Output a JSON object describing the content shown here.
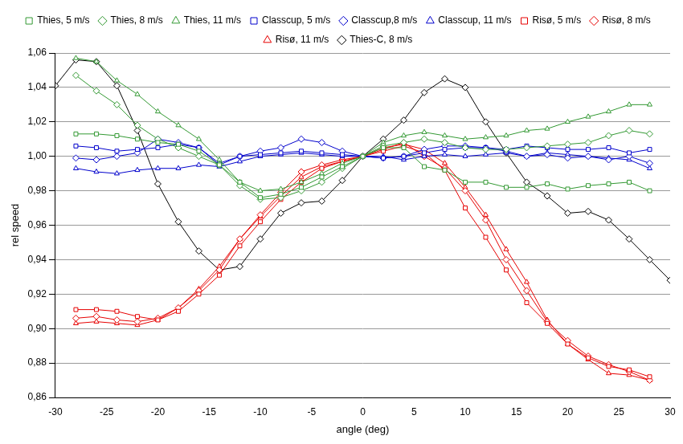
{
  "chart_data": {
    "type": "line",
    "x_label": "angle (deg)",
    "y_label": "rel speed",
    "xlim": [
      -30,
      30
    ],
    "xticks": [
      -30,
      -25,
      -20,
      -15,
      -10,
      -5,
      0,
      5,
      10,
      15,
      20,
      25,
      30
    ],
    "ylim": [
      0.86,
      1.06
    ],
    "yticks": [
      {
        "value": 0.86,
        "label": "0,86"
      },
      {
        "value": 0.88,
        "label": "0,88"
      },
      {
        "value": 0.9,
        "label": "0,90"
      },
      {
        "value": 0.92,
        "label": "0,92"
      },
      {
        "value": 0.94,
        "label": "0,94"
      },
      {
        "value": 0.96,
        "label": "0,96"
      },
      {
        "value": 0.98,
        "label": "0,98"
      },
      {
        "value": 1.0,
        "label": "1,00"
      },
      {
        "value": 1.02,
        "label": "1,02"
      },
      {
        "value": 1.04,
        "label": "1,04"
      },
      {
        "value": 1.06,
        "label": "1,06"
      }
    ],
    "grid": "y",
    "legend": "top",
    "series": [
      {
        "name": "Thies, 5 m/s",
        "color": "#339933",
        "marker": "square",
        "x": [
          -28,
          -26,
          -24,
          -22,
          -20,
          -18,
          -16,
          -14,
          -12,
          -10,
          -8,
          -6,
          -4,
          -2,
          0,
          2,
          4,
          6,
          8,
          10,
          12,
          14,
          16,
          18,
          20,
          22,
          24,
          26,
          28
        ],
        "values": [
          1.013,
          1.013,
          1.012,
          1.01,
          1.008,
          1.007,
          1.003,
          0.995,
          0.985,
          0.976,
          0.978,
          0.982,
          0.988,
          0.994,
          1.0,
          1.005,
          1.005,
          0.994,
          0.992,
          0.985,
          0.985,
          0.982,
          0.982,
          0.984,
          0.981,
          0.983,
          0.984,
          0.985,
          0.98
        ]
      },
      {
        "name": "Thies, 8 m/s",
        "color": "#339933",
        "marker": "diamond",
        "x": [
          -28,
          -26,
          -24,
          -22,
          -20,
          -18,
          -16,
          -14,
          -12,
          -10,
          -8,
          -6,
          -4,
          -2,
          0,
          2,
          4,
          6,
          8,
          10,
          12,
          14,
          16,
          18,
          20,
          22,
          24,
          26,
          28
        ],
        "values": [
          1.047,
          1.038,
          1.03,
          1.018,
          1.01,
          1.005,
          1.0,
          0.995,
          0.983,
          0.975,
          0.976,
          0.98,
          0.985,
          0.993,
          1.0,
          1.006,
          1.008,
          1.01,
          1.008,
          1.005,
          1.004,
          1.004,
          1.005,
          1.006,
          1.007,
          1.008,
          1.012,
          1.015,
          1.013
        ]
      },
      {
        "name": "Thies, 11 m/s",
        "color": "#339933",
        "marker": "triangle",
        "x": [
          -28,
          -26,
          -24,
          -22,
          -20,
          -18,
          -16,
          -14,
          -12,
          -10,
          -8,
          -6,
          -4,
          -2,
          0,
          2,
          4,
          6,
          8,
          10,
          12,
          14,
          16,
          18,
          20,
          22,
          24,
          26,
          28
        ],
        "values": [
          1.057,
          1.055,
          1.044,
          1.036,
          1.026,
          1.018,
          1.01,
          0.998,
          0.985,
          0.98,
          0.981,
          0.985,
          0.99,
          0.996,
          1.0,
          1.008,
          1.012,
          1.014,
          1.012,
          1.01,
          1.011,
          1.012,
          1.015,
          1.016,
          1.02,
          1.023,
          1.026,
          1.03,
          1.03
        ]
      },
      {
        "name": "Classcup, 5 m/s",
        "color": "#0000cc",
        "marker": "square",
        "x": [
          -28,
          -26,
          -24,
          -22,
          -20,
          -18,
          -16,
          -14,
          -12,
          -10,
          -8,
          -6,
          -4,
          -2,
          0,
          2,
          4,
          6,
          8,
          10,
          12,
          14,
          16,
          18,
          20,
          22,
          24,
          26,
          28
        ],
        "values": [
          1.006,
          1.005,
          1.003,
          1.004,
          1.005,
          1.007,
          1.005,
          0.996,
          1.0,
          1.001,
          1.002,
          1.003,
          1.002,
          1.001,
          1.0,
          0.999,
          1.0,
          1.002,
          1.004,
          1.005,
          1.005,
          1.004,
          1.006,
          1.005,
          1.004,
          1.004,
          1.005,
          1.002,
          1.004
        ]
      },
      {
        "name": "Classcup,8 m/s",
        "color": "#0000cc",
        "marker": "diamond",
        "x": [
          -28,
          -26,
          -24,
          -22,
          -20,
          -18,
          -16,
          -14,
          -12,
          -10,
          -8,
          -6,
          -4,
          -2,
          0,
          2,
          4,
          6,
          8,
          10,
          12,
          14,
          16,
          18,
          20,
          22,
          24,
          26,
          28
        ],
        "values": [
          0.999,
          0.998,
          1.0,
          1.002,
          1.01,
          1.008,
          1.005,
          0.995,
          1.0,
          1.003,
          1.005,
          1.01,
          1.008,
          1.003,
          1.0,
          0.999,
          1.0,
          1.004,
          1.006,
          1.006,
          1.005,
          1.003,
          1.0,
          1.001,
          0.999,
          1.0,
          0.998,
          1.0,
          0.996
        ]
      },
      {
        "name": "Classcup, 11 m/s",
        "color": "#0000cc",
        "marker": "triangle",
        "x": [
          -28,
          -26,
          -24,
          -22,
          -20,
          -18,
          -16,
          -14,
          -12,
          -10,
          -8,
          -6,
          -4,
          -2,
          0,
          2,
          4,
          6,
          8,
          10,
          12,
          14,
          16,
          18,
          20,
          22,
          24,
          26,
          28
        ],
        "values": [
          0.993,
          0.991,
          0.99,
          0.992,
          0.993,
          0.993,
          0.995,
          0.994,
          0.997,
          1.0,
          1.001,
          1.002,
          1.001,
          1.0,
          1.0,
          1.0,
          0.998,
          1.0,
          1.001,
          1.0,
          1.001,
          1.002,
          1.0,
          1.002,
          1.001,
          1.0,
          0.999,
          0.998,
          0.993
        ]
      },
      {
        "name": "Risø, 5 m/s",
        "color": "#e60000",
        "marker": "square",
        "x": [
          -28,
          -26,
          -24,
          -22,
          -20,
          -18,
          -16,
          -14,
          -12,
          -10,
          -8,
          -6,
          -4,
          -2,
          0,
          2,
          4,
          6,
          8,
          10,
          12,
          14,
          16,
          18,
          20,
          22,
          24,
          26,
          28
        ],
        "values": [
          0.911,
          0.911,
          0.91,
          0.907,
          0.905,
          0.91,
          0.92,
          0.931,
          0.948,
          0.962,
          0.975,
          0.985,
          0.993,
          0.997,
          1.0,
          1.003,
          1.006,
          1.002,
          0.992,
          0.97,
          0.953,
          0.934,
          0.915,
          0.903,
          0.891,
          0.883,
          0.878,
          0.876,
          0.872
        ]
      },
      {
        "name": "Risø, 8 m/s",
        "color": "#e60000",
        "marker": "diamond",
        "x": [
          -28,
          -26,
          -24,
          -22,
          -20,
          -18,
          -16,
          -14,
          -12,
          -10,
          -8,
          -6,
          -4,
          -2,
          0,
          2,
          4,
          6,
          8,
          10,
          12,
          14,
          16,
          18,
          20,
          22,
          24,
          26,
          28
        ],
        "values": [
          0.906,
          0.907,
          0.905,
          0.904,
          0.906,
          0.912,
          0.922,
          0.934,
          0.952,
          0.966,
          0.979,
          0.991,
          0.995,
          0.998,
          1.0,
          1.004,
          1.008,
          1.0,
          0.993,
          0.98,
          0.963,
          0.94,
          0.922,
          0.904,
          0.893,
          0.884,
          0.879,
          0.875,
          0.87
        ]
      },
      {
        "name": "Risø, 11 m/s",
        "color": "#e60000",
        "marker": "triangle",
        "x": [
          -28,
          -26,
          -24,
          -22,
          -20,
          -18,
          -16,
          -14,
          -12,
          -10,
          -8,
          -6,
          -4,
          -2,
          0,
          2,
          4,
          6,
          8,
          10,
          12,
          14,
          16,
          18,
          20,
          22,
          24,
          26,
          28
        ],
        "values": [
          0.903,
          0.904,
          0.903,
          0.902,
          0.905,
          0.912,
          0.923,
          0.936,
          0.952,
          0.965,
          0.977,
          0.988,
          0.994,
          0.997,
          1.0,
          1.005,
          1.007,
          1.004,
          0.996,
          0.982,
          0.966,
          0.946,
          0.927,
          0.905,
          0.891,
          0.882,
          0.874,
          0.873,
          0.87
        ]
      },
      {
        "name": "Thies-C, 8 m/s",
        "color": "#000000",
        "marker": "diamond",
        "x": [
          -30,
          -28,
          -26,
          -24,
          -22,
          -20,
          -18,
          -16,
          -14,
          -12,
          -10,
          -8,
          -6,
          -4,
          -2,
          0,
          2,
          4,
          6,
          8,
          10,
          12,
          14,
          16,
          18,
          20,
          22,
          24,
          26,
          28,
          30
        ],
        "values": [
          1.041,
          1.056,
          1.055,
          1.041,
          1.015,
          0.984,
          0.962,
          0.945,
          0.934,
          0.936,
          0.952,
          0.967,
          0.973,
          0.974,
          0.986,
          1.0,
          1.01,
          1.021,
          1.037,
          1.045,
          1.04,
          1.02,
          1.002,
          0.985,
          0.977,
          0.967,
          0.968,
          0.963,
          0.952,
          0.94,
          0.928
        ]
      }
    ]
  }
}
